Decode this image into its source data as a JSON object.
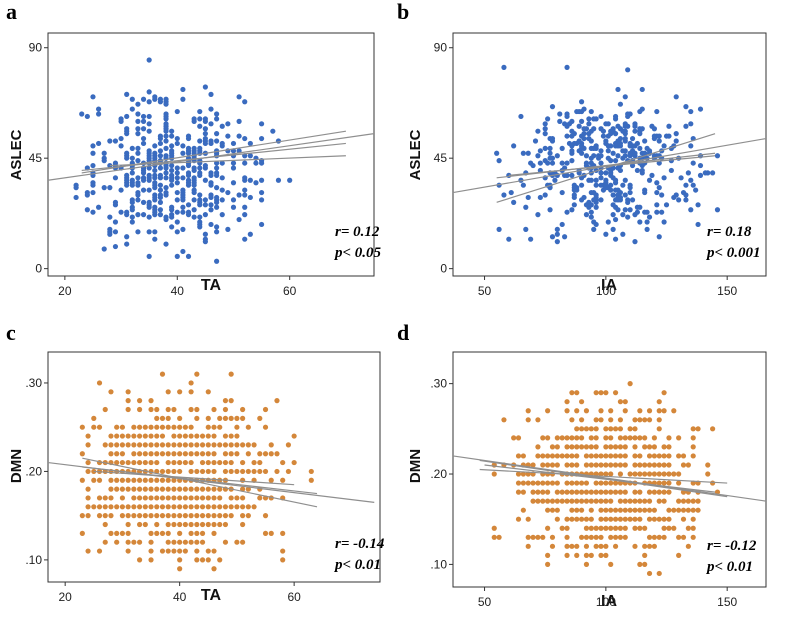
{
  "colors": {
    "blue": "#3a6bbf",
    "orange": "#d4873a",
    "line": "#8f8f8f"
  },
  "chart_data": [
    {
      "type": "scatter",
      "panel": "a",
      "xlabel": "TA",
      "ylabel": "ASLEC",
      "xlim": [
        17,
        75
      ],
      "ylim": [
        -3,
        96
      ],
      "xticks": [
        20,
        40,
        60
      ],
      "yticks": [
        0,
        45,
        90
      ],
      "xtick_labels": [
        "20",
        "40",
        "60"
      ],
      "ytick_labels": [
        "0",
        "45",
        "90"
      ],
      "point_color": "blue",
      "n_points": 420,
      "x_mean": 39,
      "x_sd": 8,
      "x_range": [
        22,
        60
      ],
      "x_step": 1,
      "y_mean": 40,
      "y_sd": 15,
      "y_range": [
        3,
        85
      ],
      "y_step": 1,
      "fit_lines": [
        {
          "x": [
            17,
            75
          ],
          "y": [
            36,
            55
          ]
        },
        {
          "x": [
            23,
            70
          ],
          "y": [
            40,
            51
          ]
        },
        {
          "x": [
            23,
            70
          ],
          "y": [
            39,
            56
          ]
        },
        {
          "x": [
            28,
            70
          ],
          "y": [
            42,
            46
          ]
        }
      ],
      "stats": [
        "r= 0.12",
        "p< 0.05"
      ]
    },
    {
      "type": "scatter",
      "panel": "b",
      "xlabel": "IA",
      "ylabel": "ASLEC",
      "xlim": [
        37,
        166
      ],
      "ylim": [
        -3,
        96
      ],
      "xticks": [
        50,
        100,
        150
      ],
      "yticks": [
        0,
        45,
        90
      ],
      "xtick_labels": [
        "50",
        "100",
        "150"
      ],
      "ytick_labels": [
        "0",
        "45",
        "90"
      ],
      "point_color": "blue",
      "n_points": 420,
      "x_mean": 100,
      "x_sd": 18,
      "x_range": [
        55,
        150
      ],
      "x_step": 1,
      "y_mean": 42,
      "y_sd": 14,
      "y_range": [
        3,
        83
      ],
      "y_step": 1,
      "fit_lines": [
        {
          "x": [
            37,
            166
          ],
          "y": [
            31,
            53
          ]
        },
        {
          "x": [
            55,
            145
          ],
          "y": [
            37,
            47
          ]
        },
        {
          "x": [
            55,
            145
          ],
          "y": [
            27,
            55
          ]
        },
        {
          "x": [
            60,
            145
          ],
          "y": [
            38,
            46
          ]
        }
      ],
      "stats": [
        "r= 0.18",
        "p< 0.001"
      ]
    },
    {
      "type": "scatter",
      "panel": "c",
      "xlabel": "TA",
      "ylabel": "DMN",
      "xlim": [
        17,
        75
      ],
      "ylim": [
        0.075,
        0.335
      ],
      "xticks": [
        20,
        40,
        60
      ],
      "yticks": [
        0.1,
        0.2,
        0.3
      ],
      "xtick_labels": [
        "20",
        "40",
        "60"
      ],
      "ytick_labels": [
        ".10",
        ".20",
        ".30"
      ],
      "point_color": "orange",
      "n_points": 420,
      "x_mean": 39,
      "x_sd": 8,
      "x_range": [
        23,
        64
      ],
      "x_step": 1,
      "y_mean": 0.19,
      "y_sd": 0.04,
      "y_range": [
        0.09,
        0.31
      ],
      "y_step": 0.01,
      "fit_lines": [
        {
          "x": [
            17,
            74
          ],
          "y": [
            0.21,
            0.165
          ]
        },
        {
          "x": [
            23,
            64
          ],
          "y": [
            0.215,
            0.16
          ]
        },
        {
          "x": [
            23,
            64
          ],
          "y": [
            0.205,
            0.175
          ]
        },
        {
          "x": [
            25,
            60
          ],
          "y": [
            0.2,
            0.185
          ]
        }
      ],
      "stats": [
        "r= -0.14",
        "p< 0.01"
      ]
    },
    {
      "type": "scatter",
      "panel": "d",
      "xlabel": "IA",
      "ylabel": "DMN",
      "xlim": [
        37,
        166
      ],
      "ylim": [
        0.075,
        0.335
      ],
      "xticks": [
        50,
        100,
        150
      ],
      "yticks": [
        0.1,
        0.2,
        0.3
      ],
      "xtick_labels": [
        "50",
        "100",
        "150"
      ],
      "ytick_labels": [
        ".10",
        ".20",
        ".30"
      ],
      "point_color": "orange",
      "n_points": 420,
      "x_mean": 102,
      "x_sd": 18,
      "x_range": [
        48,
        150
      ],
      "x_step": 2,
      "y_mean": 0.19,
      "y_sd": 0.04,
      "y_range": [
        0.09,
        0.31
      ],
      "y_step": 0.01,
      "fit_lines": [
        {
          "x": [
            37,
            166
          ],
          "y": [
            0.22,
            0.17
          ]
        },
        {
          "x": [
            48,
            150
          ],
          "y": [
            0.215,
            0.175
          ]
        },
        {
          "x": [
            48,
            150
          ],
          "y": [
            0.205,
            0.19
          ]
        },
        {
          "x": [
            50,
            145
          ],
          "y": [
            0.21,
            0.18
          ]
        }
      ],
      "stats": [
        "r= -0.12",
        "p< 0.01"
      ]
    }
  ]
}
